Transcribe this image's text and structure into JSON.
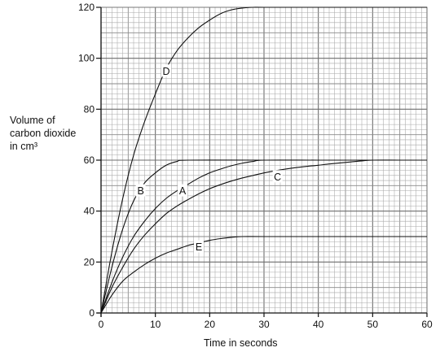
{
  "chart_data": {
    "type": "line",
    "xlabel": "Time in seconds",
    "ylabel_lines": [
      "Volume of",
      "carbon dioxide",
      "in cm³"
    ],
    "xlim": [
      0,
      60
    ],
    "ylim": [
      0,
      120
    ],
    "x_ticks": [
      0,
      10,
      20,
      30,
      40,
      50,
      60
    ],
    "y_ticks": [
      0,
      20,
      40,
      60,
      80,
      100,
      120
    ],
    "grid": true,
    "series": [
      {
        "name": "D",
        "label_at": [
          12,
          95
        ],
        "points": [
          [
            0,
            0
          ],
          [
            2,
            24
          ],
          [
            4,
            45
          ],
          [
            6,
            62
          ],
          [
            8,
            75
          ],
          [
            10,
            86
          ],
          [
            12,
            96
          ],
          [
            14,
            103
          ],
          [
            16,
            108
          ],
          [
            18,
            112
          ],
          [
            20,
            115
          ],
          [
            22,
            117.5
          ],
          [
            24,
            119
          ],
          [
            26,
            119.7
          ],
          [
            28,
            120
          ],
          [
            30,
            120
          ],
          [
            40,
            120
          ],
          [
            50,
            120
          ],
          [
            60,
            120
          ]
        ]
      },
      {
        "name": "B",
        "label_at": [
          7.3,
          48
        ],
        "points": [
          [
            0,
            0
          ],
          [
            2,
            18
          ],
          [
            4,
            33
          ],
          [
            6,
            44
          ],
          [
            8,
            51
          ],
          [
            10,
            55
          ],
          [
            12,
            58
          ],
          [
            14,
            59.5
          ],
          [
            16,
            60
          ],
          [
            30,
            60
          ],
          [
            40,
            60
          ],
          [
            50,
            60
          ],
          [
            60,
            60
          ]
        ]
      },
      {
        "name": "A",
        "label_at": [
          15,
          48
        ],
        "points": [
          [
            0,
            0
          ],
          [
            2,
            12
          ],
          [
            4,
            22
          ],
          [
            6,
            30
          ],
          [
            8,
            36
          ],
          [
            10,
            41
          ],
          [
            12,
            45
          ],
          [
            14,
            48
          ],
          [
            16,
            50.5
          ],
          [
            18,
            53
          ],
          [
            20,
            55
          ],
          [
            22,
            56.5
          ],
          [
            24,
            57.8
          ],
          [
            26,
            58.8
          ],
          [
            28,
            59.5
          ],
          [
            30,
            60
          ],
          [
            40,
            60
          ],
          [
            50,
            60
          ],
          [
            60,
            60
          ]
        ]
      },
      {
        "name": "C",
        "label_at": [
          32.5,
          53.5
        ],
        "points": [
          [
            0,
            0
          ],
          [
            2,
            10
          ],
          [
            4,
            18
          ],
          [
            6,
            25
          ],
          [
            8,
            30.5
          ],
          [
            10,
            35
          ],
          [
            12,
            39
          ],
          [
            14,
            42
          ],
          [
            16,
            44.5
          ],
          [
            18,
            46.8
          ],
          [
            20,
            48.8
          ],
          [
            22,
            50.4
          ],
          [
            24,
            51.8
          ],
          [
            26,
            53
          ],
          [
            28,
            54
          ],
          [
            30,
            55
          ],
          [
            32,
            55.8
          ],
          [
            34,
            56.5
          ],
          [
            36,
            57.1
          ],
          [
            38,
            57.6
          ],
          [
            40,
            58
          ],
          [
            42,
            58.5
          ],
          [
            44,
            58.9
          ],
          [
            46,
            59.3
          ],
          [
            48,
            59.7
          ],
          [
            50,
            60
          ],
          [
            55,
            60
          ],
          [
            60,
            60
          ]
        ]
      },
      {
        "name": "E",
        "label_at": [
          18,
          26
        ],
        "points": [
          [
            0,
            0
          ],
          [
            2,
            7
          ],
          [
            4,
            12.5
          ],
          [
            6,
            16
          ],
          [
            8,
            19
          ],
          [
            10,
            21.5
          ],
          [
            12,
            23.5
          ],
          [
            14,
            25
          ],
          [
            16,
            26.5
          ],
          [
            18,
            27.5
          ],
          [
            20,
            28.5
          ],
          [
            22,
            29.2
          ],
          [
            24,
            29.7
          ],
          [
            26,
            30
          ],
          [
            30,
            30
          ],
          [
            40,
            30
          ],
          [
            50,
            30
          ],
          [
            60,
            30
          ]
        ]
      }
    ]
  }
}
